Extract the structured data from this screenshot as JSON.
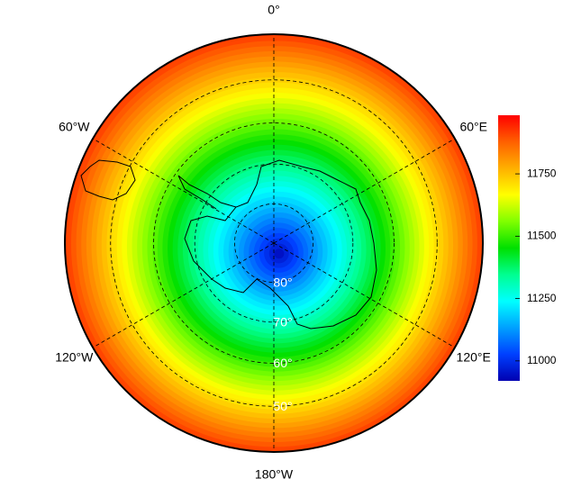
{
  "map": {
    "longitude_labels": [
      {
        "value": 0,
        "label": "0°"
      },
      {
        "value": 60,
        "label": "60°E"
      },
      {
        "value": 120,
        "label": "120°E"
      },
      {
        "value": 180,
        "label": "180°W"
      },
      {
        "value": -120,
        "label": "120°W"
      },
      {
        "value": -60,
        "label": "60°W"
      }
    ],
    "latitude_labels": [
      {
        "value": -80,
        "label": "80°"
      },
      {
        "value": -70,
        "label": "70°"
      },
      {
        "value": -60,
        "label": "60°"
      },
      {
        "value": -50,
        "label": "50°"
      }
    ]
  },
  "colorbar": {
    "range": [
      10920,
      11985
    ],
    "ticks": [
      11000,
      11250,
      11500,
      11750
    ],
    "colors": [
      "#0000b0",
      "#0040ff",
      "#00a0ff",
      "#00ffff",
      "#00ff90",
      "#00e000",
      "#80ff00",
      "#ffff00",
      "#ffb000",
      "#ff6000",
      "#ff0000"
    ]
  }
}
